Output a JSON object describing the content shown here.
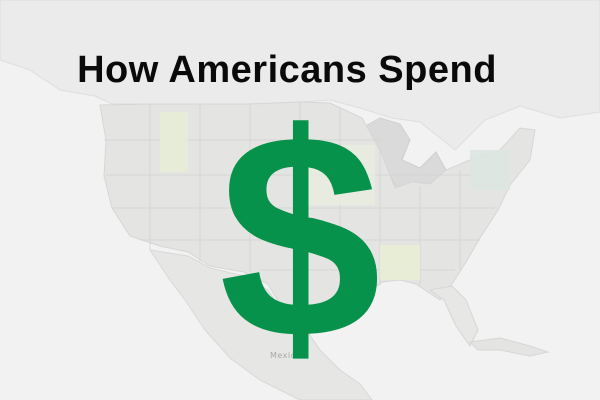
{
  "headline": "How Americans Spend",
  "symbol": "$",
  "map": {
    "country_label": "Mexico"
  },
  "colors": {
    "background": "#f2f2f2",
    "land": "#e6e6e4",
    "state_tint": "#e8eddb",
    "symbol": "#06924a",
    "headline": "#0a0a0a"
  },
  "icons": [
    "dollar-sign-icon"
  ]
}
